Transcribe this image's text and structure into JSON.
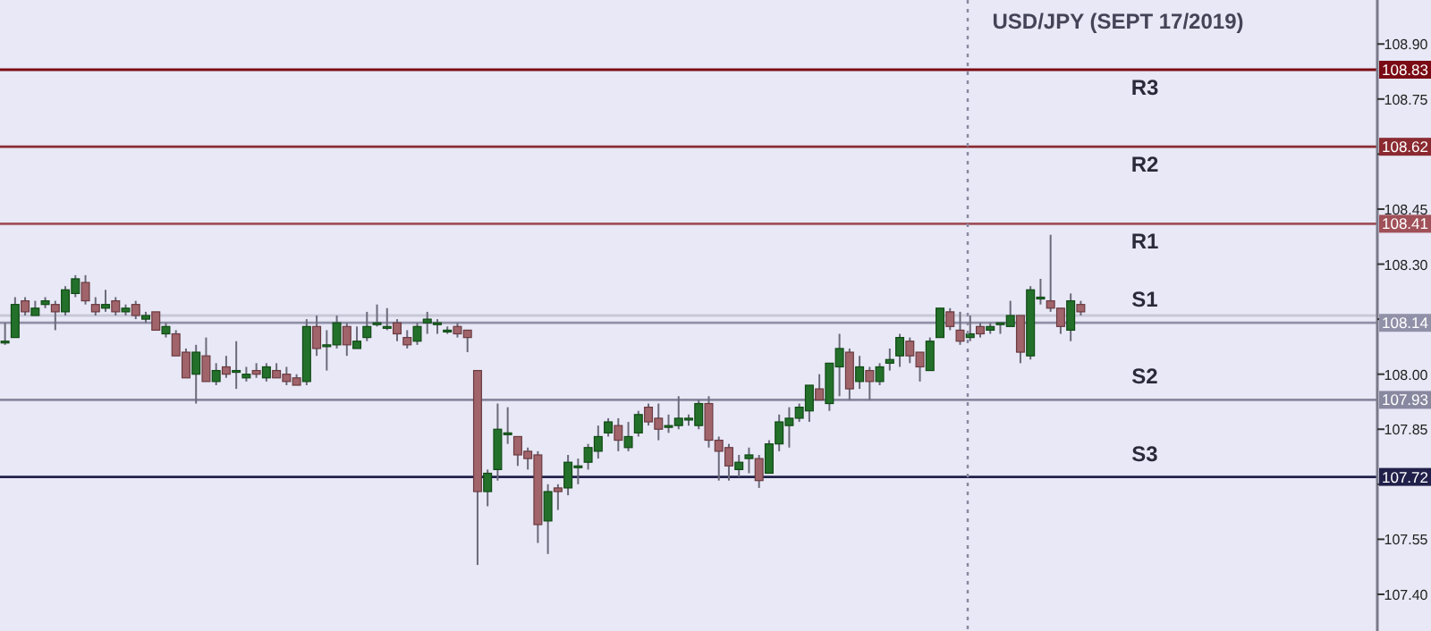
{
  "chart_data": {
    "type": "candlestick",
    "title": "USD/JPY (SEPT 17/2019)",
    "categories": [
      null,
      null,
      null,
      null,
      null,
      null,
      null,
      null,
      null,
      null,
      null,
      null,
      null,
      null,
      null,
      null,
      null,
      null,
      null,
      null,
      null,
      null,
      null,
      null,
      null,
      null,
      null,
      null,
      null,
      null,
      null,
      null,
      null,
      null,
      null,
      null,
      null,
      null,
      null,
      null,
      null,
      null,
      null,
      null,
      null,
      null,
      null,
      null,
      null,
      null,
      null,
      null,
      null,
      null,
      null,
      null,
      null,
      null,
      null,
      null,
      null,
      null,
      null,
      null,
      null,
      null,
      null,
      null,
      null,
      null,
      null,
      null,
      null,
      null,
      null,
      null,
      null,
      null,
      null,
      null,
      null,
      null,
      null,
      null,
      null,
      null,
      null,
      null,
      null,
      null,
      null,
      null,
      null,
      null,
      null,
      null,
      null,
      null,
      null,
      null,
      null,
      null,
      null,
      null,
      null,
      null,
      null,
      null,
      null,
      null,
      null,
      null,
      null,
      null,
      null,
      null,
      null,
      null,
      null,
      null,
      null,
      null,
      null,
      null,
      null,
      null,
      null,
      null,
      null,
      null,
      null,
      null,
      null,
      null,
      null,
      null,
      null
    ],
    "ohlc": [
      [
        108.09,
        108.14,
        108.08,
        108.09
      ],
      [
        108.1,
        108.21,
        108.1,
        108.19
      ],
      [
        108.2,
        108.21,
        108.16,
        108.17
      ],
      [
        108.16,
        108.2,
        108.16,
        108.18
      ],
      [
        108.19,
        108.21,
        108.18,
        108.2
      ],
      [
        108.19,
        108.2,
        108.12,
        108.17
      ],
      [
        108.17,
        108.24,
        108.16,
        108.23
      ],
      [
        108.22,
        108.27,
        108.21,
        108.26
      ],
      [
        108.25,
        108.27,
        108.19,
        108.2
      ],
      [
        108.19,
        108.21,
        108.16,
        108.17
      ],
      [
        108.18,
        108.23,
        108.17,
        108.19
      ],
      [
        108.2,
        108.21,
        108.16,
        108.17
      ],
      [
        108.17,
        108.19,
        108.16,
        108.18
      ],
      [
        108.19,
        108.2,
        108.15,
        108.16
      ],
      [
        108.15,
        108.17,
        108.14,
        108.16
      ],
      [
        108.17,
        108.17,
        108.12,
        108.12
      ],
      [
        108.11,
        108.14,
        108.1,
        108.13
      ],
      [
        108.11,
        108.12,
        108.05,
        108.05
      ],
      [
        108.06,
        108.07,
        107.99,
        107.99
      ],
      [
        108.0,
        108.08,
        107.92,
        108.06
      ],
      [
        108.05,
        108.1,
        107.98,
        107.98
      ],
      [
        107.98,
        108.03,
        107.97,
        108.01
      ],
      [
        108.02,
        108.05,
        107.99,
        108.0
      ],
      [
        108.01,
        108.09,
        107.96,
        108.01
      ],
      [
        107.99,
        108.02,
        107.98,
        108.0
      ],
      [
        108.01,
        108.03,
        107.99,
        108.0
      ],
      [
        107.99,
        108.03,
        107.98,
        108.02
      ],
      [
        108.01,
        108.03,
        107.99,
        107.99
      ],
      [
        108.0,
        108.02,
        107.97,
        107.98
      ],
      [
        107.99,
        108.0,
        107.97,
        107.97
      ],
      [
        107.98,
        108.15,
        107.97,
        108.13
      ],
      [
        108.13,
        108.16,
        108.05,
        108.07
      ],
      [
        108.08,
        108.12,
        108.01,
        108.08
      ],
      [
        108.08,
        108.16,
        108.07,
        108.14
      ],
      [
        108.13,
        108.14,
        108.05,
        108.08
      ],
      [
        108.07,
        108.13,
        108.07,
        108.09
      ],
      [
        108.1,
        108.17,
        108.09,
        108.13
      ],
      [
        108.14,
        108.19,
        108.13,
        108.14
      ],
      [
        108.13,
        108.18,
        108.12,
        108.13
      ],
      [
        108.14,
        108.15,
        108.09,
        108.11
      ],
      [
        108.1,
        108.12,
        108.07,
        108.08
      ],
      [
        108.09,
        108.14,
        108.08,
        108.13
      ],
      [
        108.14,
        108.17,
        108.11,
        108.15
      ],
      [
        108.14,
        108.15,
        108.11,
        108.14
      ],
      [
        108.12,
        108.13,
        108.11,
        108.12
      ],
      [
        108.13,
        108.14,
        108.1,
        108.11
      ],
      [
        108.12,
        108.12,
        108.06,
        108.1
      ],
      [
        108.01,
        108.01,
        107.48,
        107.68
      ],
      [
        107.68,
        107.74,
        107.64,
        107.73
      ],
      [
        107.74,
        107.92,
        107.71,
        107.85
      ],
      [
        107.84,
        107.91,
        107.81,
        107.84
      ],
      [
        107.83,
        107.83,
        107.75,
        107.78
      ],
      [
        107.79,
        107.8,
        107.74,
        107.77
      ],
      [
        107.78,
        107.79,
        107.54,
        107.59
      ],
      [
        107.6,
        107.7,
        107.51,
        107.68
      ],
      [
        107.69,
        107.7,
        107.63,
        107.68
      ],
      [
        107.69,
        107.78,
        107.67,
        107.76
      ],
      [
        107.75,
        107.77,
        107.7,
        107.75
      ],
      [
        107.76,
        107.81,
        107.74,
        107.8
      ],
      [
        107.79,
        107.86,
        107.77,
        107.83
      ],
      [
        107.84,
        107.88,
        107.83,
        107.87
      ],
      [
        107.86,
        107.88,
        107.79,
        107.82
      ],
      [
        107.8,
        107.87,
        107.79,
        107.83
      ],
      [
        107.84,
        107.9,
        107.83,
        107.89
      ],
      [
        107.91,
        107.92,
        107.86,
        107.87
      ],
      [
        107.88,
        107.92,
        107.82,
        107.85
      ],
      [
        107.86,
        107.89,
        107.84,
        107.86
      ],
      [
        107.86,
        107.94,
        107.85,
        107.88
      ],
      [
        107.88,
        107.89,
        107.86,
        107.88
      ],
      [
        107.86,
        107.93,
        107.85,
        107.92
      ],
      [
        107.92,
        107.94,
        107.8,
        107.82
      ],
      [
        107.82,
        107.83,
        107.71,
        107.79
      ],
      [
        107.8,
        107.81,
        107.71,
        107.75
      ],
      [
        107.74,
        107.78,
        107.72,
        107.76
      ],
      [
        107.77,
        107.8,
        107.73,
        107.78
      ],
      [
        107.77,
        107.78,
        107.69,
        107.71
      ],
      [
        107.73,
        107.82,
        107.73,
        107.81
      ],
      [
        107.81,
        107.89,
        107.79,
        107.87
      ],
      [
        107.86,
        107.91,
        107.8,
        107.88
      ],
      [
        107.88,
        107.92,
        107.87,
        107.91
      ],
      [
        107.9,
        107.97,
        107.87,
        107.97
      ],
      [
        107.96,
        108.0,
        107.93,
        107.93
      ],
      [
        107.92,
        108.03,
        107.9,
        108.03
      ],
      [
        108.02,
        108.11,
        107.94,
        108.07
      ],
      [
        108.06,
        108.07,
        107.93,
        107.96
      ],
      [
        107.98,
        108.05,
        107.96,
        108.02
      ],
      [
        108.01,
        108.02,
        107.93,
        107.98
      ],
      [
        107.98,
        108.03,
        107.97,
        108.02
      ],
      [
        108.03,
        108.07,
        108.01,
        108.04
      ],
      [
        108.05,
        108.11,
        108.02,
        108.1
      ],
      [
        108.09,
        108.1,
        108.03,
        108.05
      ],
      [
        108.06,
        108.06,
        107.98,
        108.02
      ],
      [
        108.01,
        108.1,
        108.01,
        108.09
      ],
      [
        108.1,
        108.18,
        108.1,
        108.18
      ],
      [
        108.17,
        108.18,
        108.12,
        108.13
      ],
      [
        108.12,
        108.17,
        108.08,
        108.09
      ],
      [
        108.1,
        108.16,
        108.09,
        108.11
      ],
      [
        108.13,
        108.14,
        108.1,
        108.11
      ],
      [
        108.12,
        108.14,
        108.11,
        108.13
      ],
      [
        108.14,
        108.14,
        108.11,
        108.14
      ],
      [
        108.13,
        108.2,
        108.13,
        108.16
      ],
      [
        108.16,
        108.16,
        108.03,
        108.06
      ],
      [
        108.05,
        108.24,
        108.04,
        108.23
      ],
      [
        108.21,
        108.26,
        108.19,
        108.21
      ],
      [
        108.2,
        108.38,
        108.17,
        108.18
      ],
      [
        108.18,
        108.18,
        108.11,
        108.13
      ],
      [
        108.12,
        108.22,
        108.09,
        108.2
      ],
      [
        108.19,
        108.2,
        108.16,
        108.17
      ],
      null,
      null,
      null,
      null,
      null,
      null,
      null,
      null,
      null,
      null,
      null,
      null,
      null,
      null,
      null,
      null,
      null,
      null,
      null,
      null,
      null,
      null,
      null,
      null,
      null,
      null,
      null,
      null,
      null
    ],
    "ylim": [
      107.3,
      109.02
    ],
    "yticks": [
      {
        "value": 108.9,
        "label": "108.90"
      },
      108.75,
      {
        "value": 108.6,
        "label": null
      },
      108.45,
      {
        "value": 108.3,
        "label": "108.30"
      },
      {
        "value": 108.15,
        "label": null
      },
      {
        "value": 108.0,
        "label": "108.00"
      },
      107.85,
      {
        "value": 107.7,
        "label": null
      },
      107.55,
      {
        "value": 107.4,
        "label": "107.40"
      }
    ],
    "annotations": [
      {
        "text": "108.83",
        "y": 108.83
      },
      {
        "text": "108.62",
        "y": 108.62
      },
      {
        "text": "108.41",
        "y": 108.41
      },
      {
        "text": "108.14",
        "y": 108.14
      },
      {
        "text": "107.93",
        "y": 107.93
      },
      {
        "text": "107.72",
        "y": 107.72
      }
    ],
    "tick_labels": "y",
    "ref_lines": [
      {
        "axis": "y",
        "value": 108.83,
        "label": "R3",
        "color": "#7a0a14"
      },
      {
        "axis": "y",
        "value": 108.62,
        "label": "R2",
        "color": "#8a2a30"
      },
      {
        "axis": "y",
        "value": 108.41,
        "label": "R1",
        "color": "#a05058"
      },
      {
        "axis": "y",
        "value": 108.16,
        "label": null,
        "color": "#c8c8d8"
      },
      {
        "axis": "y",
        "value": 108.14,
        "label": "S1",
        "color": "#9090a8"
      },
      {
        "axis": "y",
        "value": 107.93,
        "label": "S2",
        "color": "#8888a0"
      },
      {
        "axis": "y",
        "value": 107.72,
        "label": "S3",
        "color": "#20204a",
        "line_style": "solid"
      }
    ]
  }
}
